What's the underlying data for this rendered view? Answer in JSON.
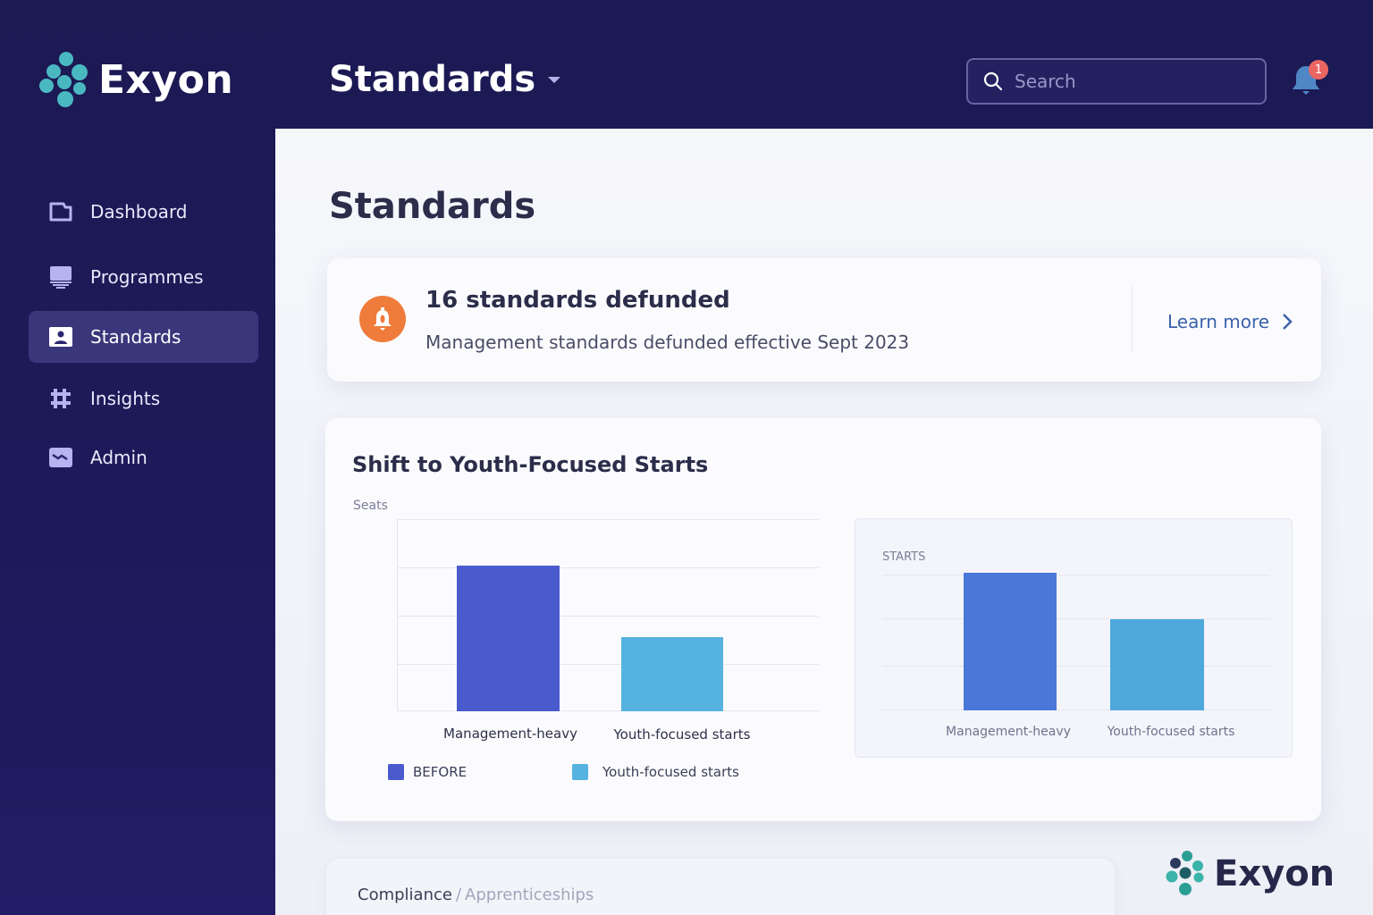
{
  "brand": {
    "name": "Exyon",
    "accent": "#4ab8c1"
  },
  "sidebar": {
    "items": [
      {
        "label": "Dashboard",
        "icon": "dashboard-icon",
        "active": false
      },
      {
        "label": "Programmes",
        "icon": "programmes-icon",
        "active": false
      },
      {
        "label": "Standards",
        "icon": "standards-icon",
        "active": true
      },
      {
        "label": "Insights",
        "icon": "insights-icon",
        "active": false
      },
      {
        "label": "Admin",
        "icon": "admin-icon",
        "active": false
      }
    ]
  },
  "header": {
    "page_selector": "Standards",
    "search_placeholder": "Search",
    "notifications_count": "1"
  },
  "main": {
    "title": "Standards",
    "alert": {
      "title": "16 standards defunded",
      "subtitle": "Management standards defunded effective Sept 2023",
      "action": "Learn more"
    },
    "chart_card": {
      "title": "Shift to Youth-Focused Starts"
    },
    "breadcrumb": {
      "items": [
        "Compliance",
        "Apprenticeships"
      ],
      "separator": "/"
    }
  },
  "chart_data": [
    {
      "type": "bar",
      "title": "Shift to Youth-Focused Starts",
      "ylabel": "Seats",
      "xlabel": "",
      "categories": [
        "Management-heavy",
        "Youth-focused starts"
      ],
      "values": [
        3.05,
        1.55
      ],
      "colors": [
        "#4a5bce",
        "#56b2df"
      ],
      "ylim": [
        0,
        4
      ],
      "grid": true,
      "legend": [
        {
          "label": "BEFORE",
          "color": "#4a5bce"
        },
        {
          "label": "Youth-focused starts",
          "color": "#56b2df"
        }
      ],
      "legend_position": "bottom"
    },
    {
      "type": "bar",
      "ylabel": "STARTS",
      "categories": [
        "Management-heavy",
        "Youth-focused starts"
      ],
      "values": [
        3.1,
        2.05
      ],
      "colors": [
        "#4b78d8",
        "#4fa8dc"
      ],
      "ylim": [
        0,
        3
      ],
      "grid": true
    }
  ]
}
